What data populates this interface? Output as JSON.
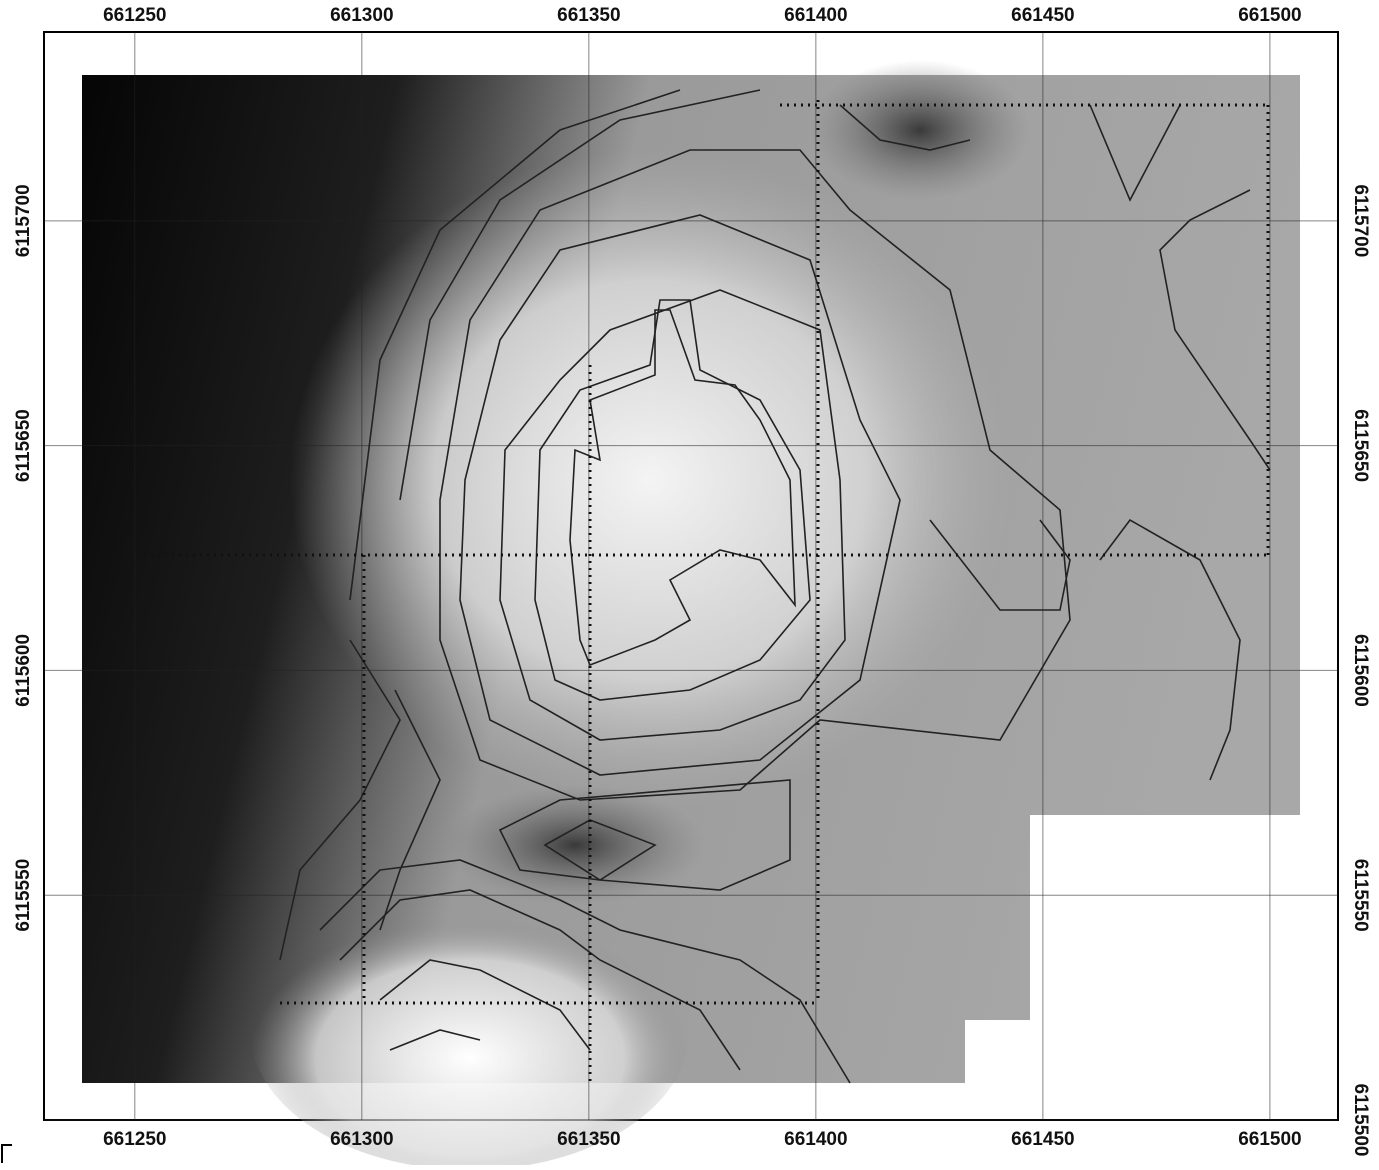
{
  "map": {
    "xlim": [
      661230,
      661515
    ],
    "ylim": [
      6115500,
      6115742
    ],
    "xticks": [
      661250,
      661300,
      661350,
      661400,
      661450,
      661500
    ],
    "yticks_left": [
      6115550,
      6115600,
      6115650,
      6115700
    ],
    "yticks_right": [
      6115500,
      6115550,
      6115600,
      6115650,
      6115700
    ]
  }
}
